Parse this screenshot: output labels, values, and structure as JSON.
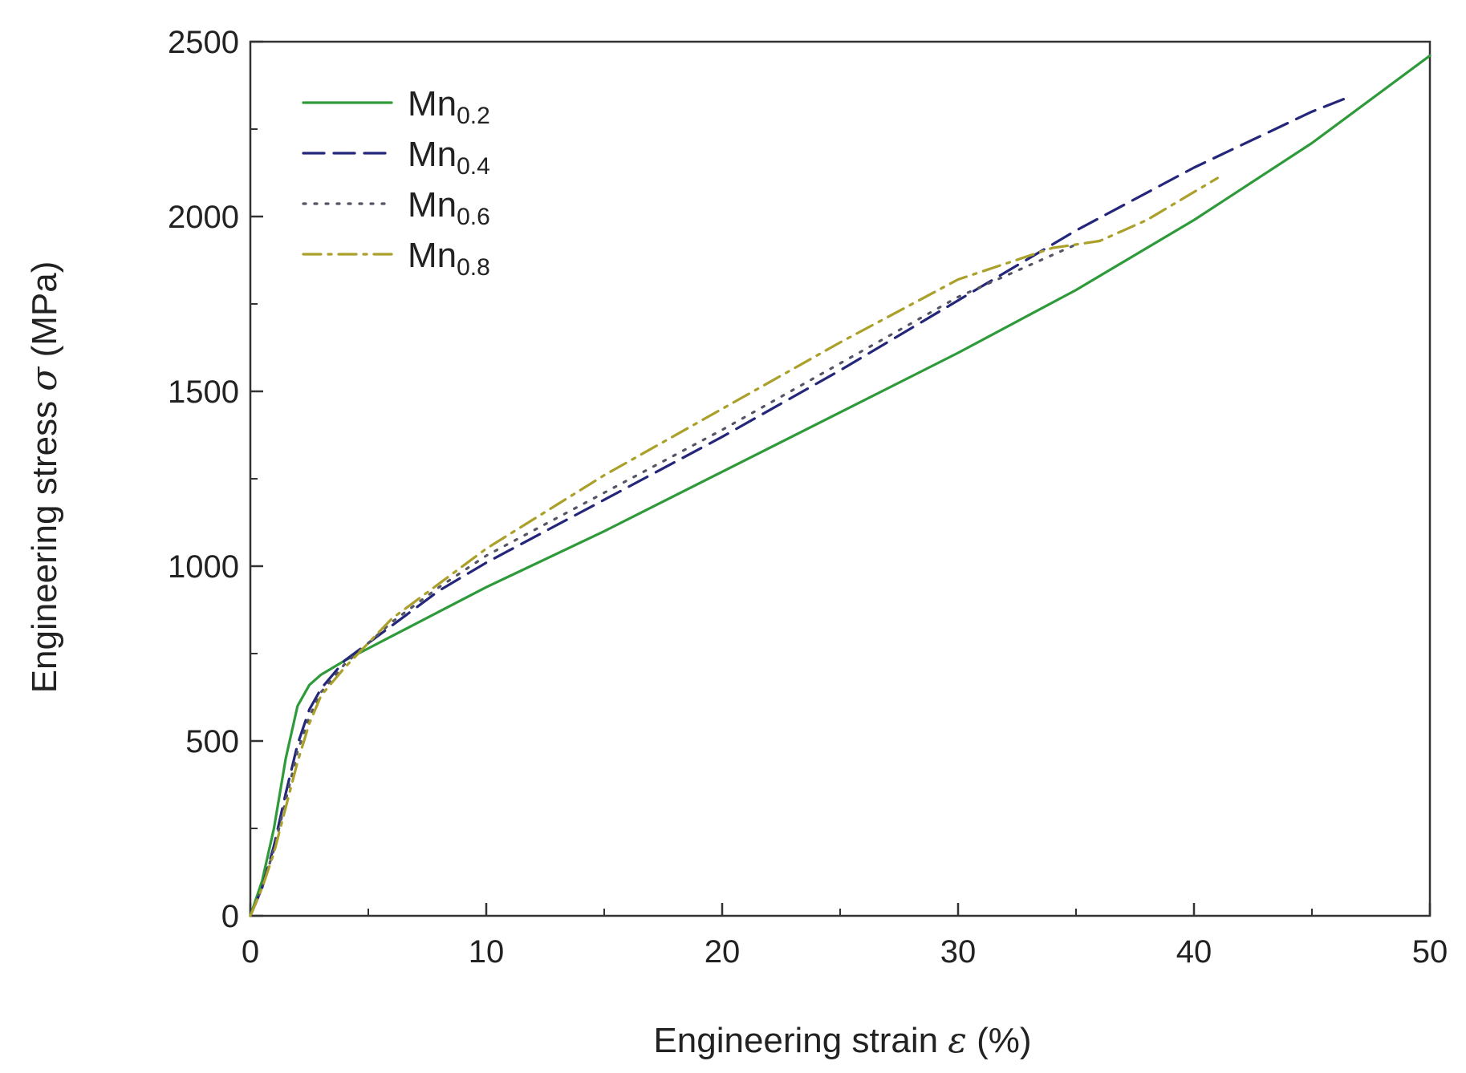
{
  "chart_data": {
    "type": "line",
    "xlabel": {
      "prefix": "Engineering strain ",
      "symbol": "ε",
      "suffix": " (%)"
    },
    "ylabel": {
      "prefix": "Engineering stress ",
      "symbol": "σ",
      "suffix": " (MPa)"
    },
    "xlim": [
      0,
      50
    ],
    "ylim": [
      0,
      2500
    ],
    "x_ticks": [
      0,
      10,
      20,
      30,
      40,
      50
    ],
    "y_ticks": [
      0,
      500,
      1000,
      1500,
      2000,
      2500
    ],
    "x_tick_labels": [
      "0",
      "10",
      "20",
      "30",
      "40",
      "50"
    ],
    "y_tick_labels": [
      "0",
      "500",
      "1000",
      "1500",
      "2000",
      "2500"
    ],
    "grid": false,
    "legend_position": "top-left",
    "series": [
      {
        "name": "Mn0.2",
        "name_main": "Mn",
        "name_sub": "0.2",
        "color": "#2e9a3a",
        "style": "solid",
        "x": [
          0,
          0.5,
          1,
          1.5,
          2,
          2.5,
          3,
          4,
          5,
          6,
          8,
          10,
          15,
          20,
          25,
          30,
          35,
          40,
          45,
          50
        ],
        "y": [
          0,
          100,
          250,
          450,
          600,
          660,
          690,
          730,
          765,
          800,
          870,
          940,
          1100,
          1270,
          1440,
          1610,
          1790,
          1990,
          2210,
          2460
        ]
      },
      {
        "name": "Mn0.4",
        "name_main": "Mn",
        "name_sub": "0.4",
        "color": "#24267a",
        "style": "dashed",
        "x": [
          0,
          0.5,
          1,
          1.5,
          2,
          2.5,
          3,
          4,
          5,
          6,
          8,
          10,
          15,
          20,
          25,
          30,
          35,
          40,
          45,
          46.5
        ],
        "y": [
          0,
          80,
          200,
          350,
          490,
          590,
          650,
          730,
          780,
          830,
          930,
          1010,
          1190,
          1370,
          1560,
          1760,
          1960,
          2140,
          2300,
          2340
        ]
      },
      {
        "name": "Mn0.6",
        "name_main": "Mn",
        "name_sub": "0.6",
        "color": "#555566",
        "style": "dotted",
        "x": [
          0,
          0.5,
          1,
          1.5,
          2,
          2.5,
          3,
          4,
          5,
          6,
          8,
          10,
          15,
          20,
          25,
          30,
          35
        ],
        "y": [
          0,
          80,
          190,
          330,
          470,
          570,
          640,
          720,
          780,
          840,
          940,
          1030,
          1210,
          1390,
          1580,
          1770,
          1920
        ]
      },
      {
        "name": "Mn0.8",
        "name_main": "Mn",
        "name_sub": "0.8",
        "color": "#aaa02a",
        "style": "dashdot",
        "x": [
          0,
          0.5,
          1,
          1.5,
          2,
          2.5,
          3,
          4,
          5,
          6,
          8,
          10,
          15,
          20,
          25,
          30,
          34,
          36,
          38,
          41
        ],
        "y": [
          0,
          80,
          180,
          310,
          440,
          550,
          630,
          710,
          780,
          850,
          950,
          1050,
          1260,
          1450,
          1640,
          1820,
          1910,
          1930,
          1990,
          2110
        ]
      }
    ]
  }
}
